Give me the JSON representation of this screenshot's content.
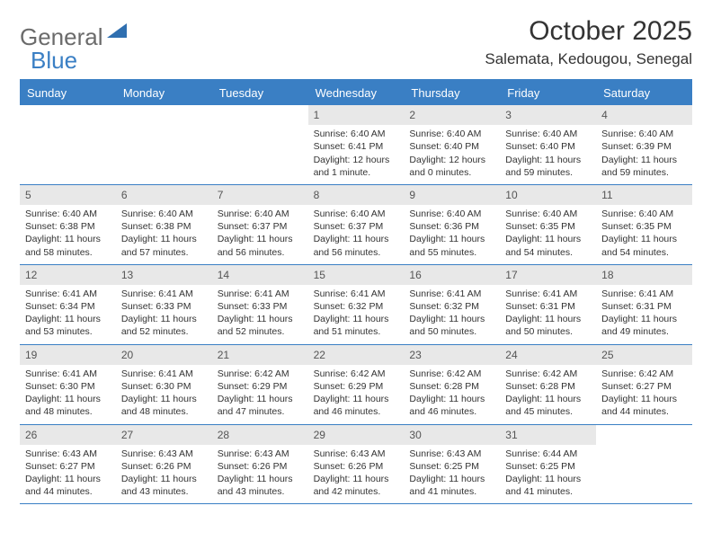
{
  "logo": {
    "part1": "General",
    "part2": "Blue",
    "triangle_color": "#2f6fb0"
  },
  "title": "October 2025",
  "location": "Salemata, Kedougou, Senegal",
  "colors": {
    "header_bg": "#3a7fc4",
    "header_text": "#ffffff",
    "daynum_bg": "#e8e8e8",
    "border": "#3a7fc4",
    "text": "#333333"
  },
  "fonts": {
    "title_size": 30,
    "location_size": 17,
    "header_size": 13,
    "cell_size": 10.5
  },
  "day_names": [
    "Sunday",
    "Monday",
    "Tuesday",
    "Wednesday",
    "Thursday",
    "Friday",
    "Saturday"
  ],
  "weeks": [
    [
      {
        "day": "",
        "sunrise": "",
        "sunset": "",
        "daylight": ""
      },
      {
        "day": "",
        "sunrise": "",
        "sunset": "",
        "daylight": ""
      },
      {
        "day": "",
        "sunrise": "",
        "sunset": "",
        "daylight": ""
      },
      {
        "day": "1",
        "sunrise": "Sunrise: 6:40 AM",
        "sunset": "Sunset: 6:41 PM",
        "daylight": "Daylight: 12 hours and 1 minute."
      },
      {
        "day": "2",
        "sunrise": "Sunrise: 6:40 AM",
        "sunset": "Sunset: 6:40 PM",
        "daylight": "Daylight: 12 hours and 0 minutes."
      },
      {
        "day": "3",
        "sunrise": "Sunrise: 6:40 AM",
        "sunset": "Sunset: 6:40 PM",
        "daylight": "Daylight: 11 hours and 59 minutes."
      },
      {
        "day": "4",
        "sunrise": "Sunrise: 6:40 AM",
        "sunset": "Sunset: 6:39 PM",
        "daylight": "Daylight: 11 hours and 59 minutes."
      }
    ],
    [
      {
        "day": "5",
        "sunrise": "Sunrise: 6:40 AM",
        "sunset": "Sunset: 6:38 PM",
        "daylight": "Daylight: 11 hours and 58 minutes."
      },
      {
        "day": "6",
        "sunrise": "Sunrise: 6:40 AM",
        "sunset": "Sunset: 6:38 PM",
        "daylight": "Daylight: 11 hours and 57 minutes."
      },
      {
        "day": "7",
        "sunrise": "Sunrise: 6:40 AM",
        "sunset": "Sunset: 6:37 PM",
        "daylight": "Daylight: 11 hours and 56 minutes."
      },
      {
        "day": "8",
        "sunrise": "Sunrise: 6:40 AM",
        "sunset": "Sunset: 6:37 PM",
        "daylight": "Daylight: 11 hours and 56 minutes."
      },
      {
        "day": "9",
        "sunrise": "Sunrise: 6:40 AM",
        "sunset": "Sunset: 6:36 PM",
        "daylight": "Daylight: 11 hours and 55 minutes."
      },
      {
        "day": "10",
        "sunrise": "Sunrise: 6:40 AM",
        "sunset": "Sunset: 6:35 PM",
        "daylight": "Daylight: 11 hours and 54 minutes."
      },
      {
        "day": "11",
        "sunrise": "Sunrise: 6:40 AM",
        "sunset": "Sunset: 6:35 PM",
        "daylight": "Daylight: 11 hours and 54 minutes."
      }
    ],
    [
      {
        "day": "12",
        "sunrise": "Sunrise: 6:41 AM",
        "sunset": "Sunset: 6:34 PM",
        "daylight": "Daylight: 11 hours and 53 minutes."
      },
      {
        "day": "13",
        "sunrise": "Sunrise: 6:41 AM",
        "sunset": "Sunset: 6:33 PM",
        "daylight": "Daylight: 11 hours and 52 minutes."
      },
      {
        "day": "14",
        "sunrise": "Sunrise: 6:41 AM",
        "sunset": "Sunset: 6:33 PM",
        "daylight": "Daylight: 11 hours and 52 minutes."
      },
      {
        "day": "15",
        "sunrise": "Sunrise: 6:41 AM",
        "sunset": "Sunset: 6:32 PM",
        "daylight": "Daylight: 11 hours and 51 minutes."
      },
      {
        "day": "16",
        "sunrise": "Sunrise: 6:41 AM",
        "sunset": "Sunset: 6:32 PM",
        "daylight": "Daylight: 11 hours and 50 minutes."
      },
      {
        "day": "17",
        "sunrise": "Sunrise: 6:41 AM",
        "sunset": "Sunset: 6:31 PM",
        "daylight": "Daylight: 11 hours and 50 minutes."
      },
      {
        "day": "18",
        "sunrise": "Sunrise: 6:41 AM",
        "sunset": "Sunset: 6:31 PM",
        "daylight": "Daylight: 11 hours and 49 minutes."
      }
    ],
    [
      {
        "day": "19",
        "sunrise": "Sunrise: 6:41 AM",
        "sunset": "Sunset: 6:30 PM",
        "daylight": "Daylight: 11 hours and 48 minutes."
      },
      {
        "day": "20",
        "sunrise": "Sunrise: 6:41 AM",
        "sunset": "Sunset: 6:30 PM",
        "daylight": "Daylight: 11 hours and 48 minutes."
      },
      {
        "day": "21",
        "sunrise": "Sunrise: 6:42 AM",
        "sunset": "Sunset: 6:29 PM",
        "daylight": "Daylight: 11 hours and 47 minutes."
      },
      {
        "day": "22",
        "sunrise": "Sunrise: 6:42 AM",
        "sunset": "Sunset: 6:29 PM",
        "daylight": "Daylight: 11 hours and 46 minutes."
      },
      {
        "day": "23",
        "sunrise": "Sunrise: 6:42 AM",
        "sunset": "Sunset: 6:28 PM",
        "daylight": "Daylight: 11 hours and 46 minutes."
      },
      {
        "day": "24",
        "sunrise": "Sunrise: 6:42 AM",
        "sunset": "Sunset: 6:28 PM",
        "daylight": "Daylight: 11 hours and 45 minutes."
      },
      {
        "day": "25",
        "sunrise": "Sunrise: 6:42 AM",
        "sunset": "Sunset: 6:27 PM",
        "daylight": "Daylight: 11 hours and 44 minutes."
      }
    ],
    [
      {
        "day": "26",
        "sunrise": "Sunrise: 6:43 AM",
        "sunset": "Sunset: 6:27 PM",
        "daylight": "Daylight: 11 hours and 44 minutes."
      },
      {
        "day": "27",
        "sunrise": "Sunrise: 6:43 AM",
        "sunset": "Sunset: 6:26 PM",
        "daylight": "Daylight: 11 hours and 43 minutes."
      },
      {
        "day": "28",
        "sunrise": "Sunrise: 6:43 AM",
        "sunset": "Sunset: 6:26 PM",
        "daylight": "Daylight: 11 hours and 43 minutes."
      },
      {
        "day": "29",
        "sunrise": "Sunrise: 6:43 AM",
        "sunset": "Sunset: 6:26 PM",
        "daylight": "Daylight: 11 hours and 42 minutes."
      },
      {
        "day": "30",
        "sunrise": "Sunrise: 6:43 AM",
        "sunset": "Sunset: 6:25 PM",
        "daylight": "Daylight: 11 hours and 41 minutes."
      },
      {
        "day": "31",
        "sunrise": "Sunrise: 6:44 AM",
        "sunset": "Sunset: 6:25 PM",
        "daylight": "Daylight: 11 hours and 41 minutes."
      },
      {
        "day": "",
        "sunrise": "",
        "sunset": "",
        "daylight": ""
      }
    ]
  ]
}
